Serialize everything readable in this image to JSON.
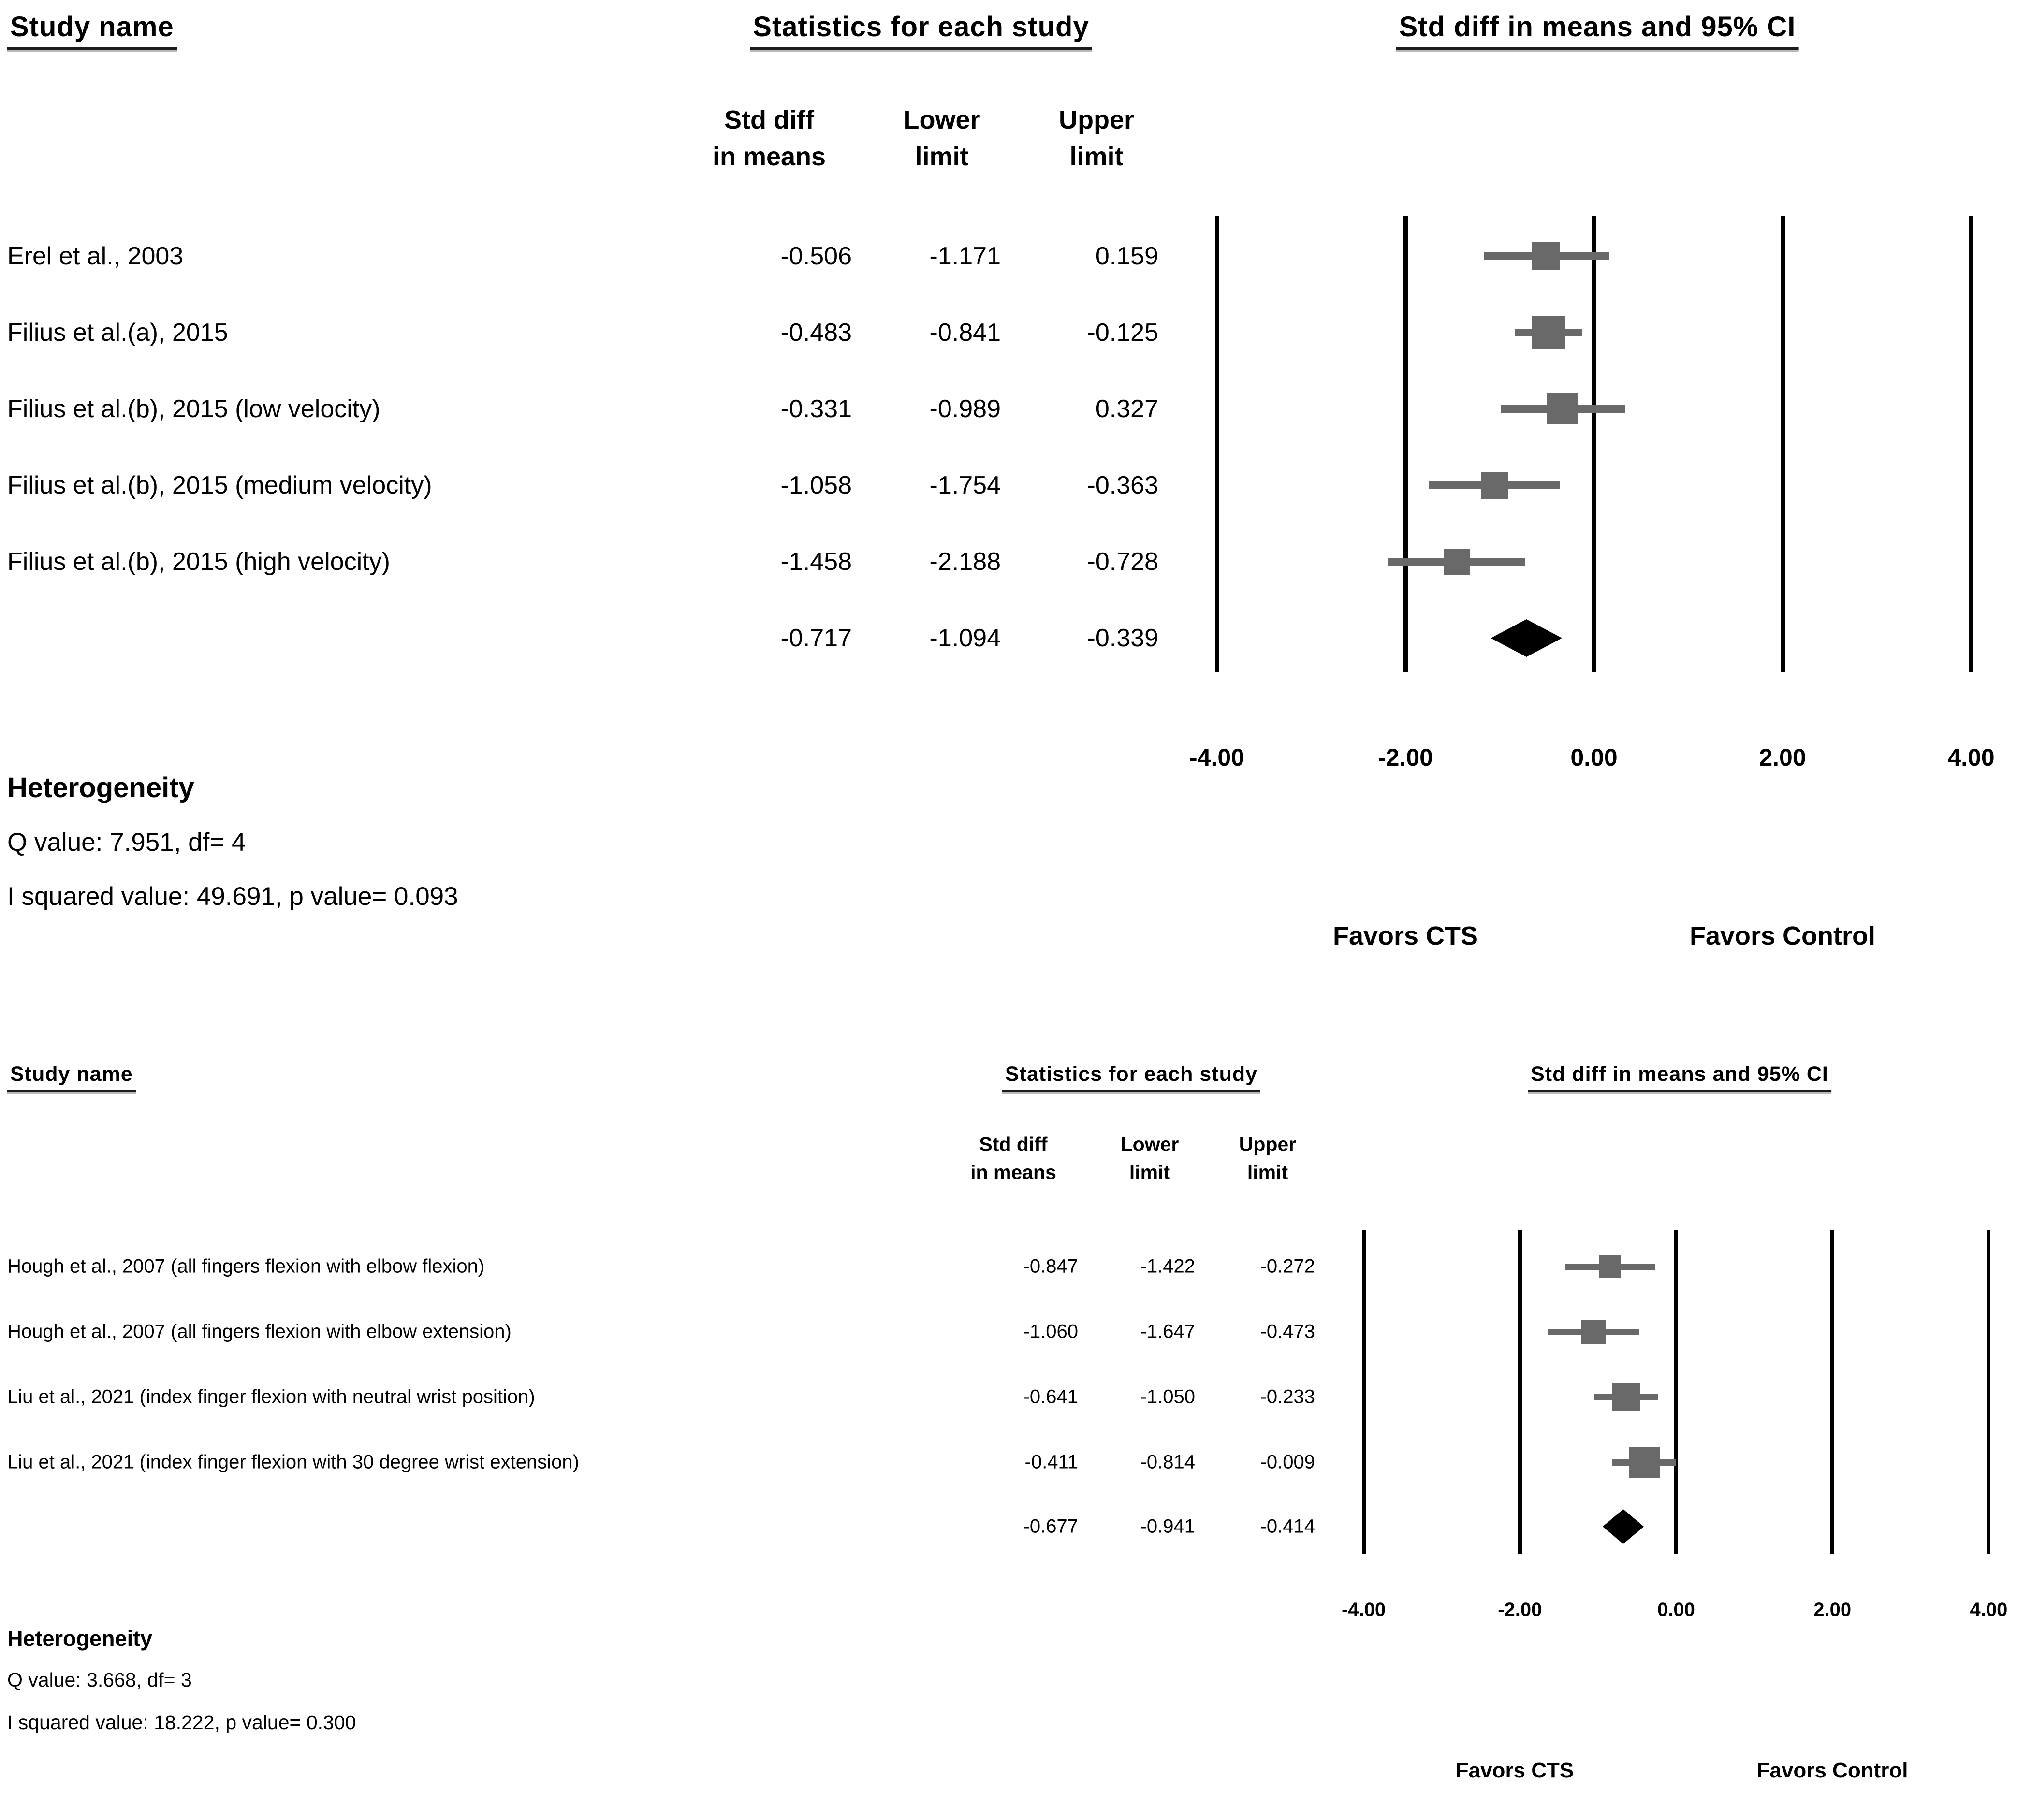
{
  "page": {
    "background": "#ffffff"
  },
  "colors": {
    "text": "#000000",
    "gridline": "#000000",
    "marker": "#696969",
    "ci_line": "#696969",
    "diamond": "#000000"
  },
  "chart_data": [
    {
      "type": "forest",
      "panel": "upper",
      "columns": {
        "study": "Study name",
        "stats": "Statistics for each study",
        "ci": "Std diff in means and 95% CI"
      },
      "stat_headers": {
        "col1_line1": "Std diff",
        "col1_line2": "in means",
        "col2_line1": "Lower",
        "col2_line2": "limit",
        "col3_line1": "Upper",
        "col3_line2": "limit"
      },
      "xlim": [
        -4,
        4
      ],
      "x_ticks": [
        "-4.00",
        "-2.00",
        "0.00",
        "2.00",
        "4.00"
      ],
      "x_tick_values": [
        -4,
        -2,
        0,
        2,
        4
      ],
      "grid": true,
      "legend_position": "none",
      "studies": [
        {
          "name": "Erel et al., 2003",
          "mean": -0.506,
          "lower": -1.171,
          "upper": 0.159,
          "marker_size": 58
        },
        {
          "name": "Filius et al.(a), 2015",
          "mean": -0.483,
          "lower": -0.841,
          "upper": -0.125,
          "marker_size": 68
        },
        {
          "name": "Filius et al.(b), 2015 (low velocity)",
          "mean": -0.331,
          "lower": -0.989,
          "upper": 0.327,
          "marker_size": 64
        },
        {
          "name": "Filius et al.(b), 2015 (medium velocity)",
          "mean": -1.058,
          "lower": -1.754,
          "upper": -0.363,
          "marker_size": 56
        },
        {
          "name": "Filius et al.(b), 2015 (high velocity)",
          "mean": -1.458,
          "lower": -2.188,
          "upper": -0.728,
          "marker_size": 54
        }
      ],
      "summary": {
        "mean": -0.717,
        "lower": -1.094,
        "upper": -0.339
      },
      "favors": {
        "left": "Favors CTS",
        "right": "Favors Control"
      },
      "heterogeneity": {
        "title": "Heterogeneity",
        "q_line": "Q value: 7.951, df= 4",
        "i2_line": "I squared value: 49.691, p value= 0.093"
      }
    },
    {
      "type": "forest",
      "panel": "lower",
      "columns": {
        "study": "Study name",
        "stats": "Statistics for each study",
        "ci": "Std diff in means and 95% CI"
      },
      "stat_headers": {
        "col1_line1": "Std diff",
        "col1_line2": "in means",
        "col2_line1": "Lower",
        "col2_line2": "limit",
        "col3_line1": "Upper",
        "col3_line2": "limit"
      },
      "xlim": [
        -4,
        4
      ],
      "x_ticks": [
        "-4.00",
        "-2.00",
        "0.00",
        "2.00",
        "4.00"
      ],
      "x_tick_values": [
        -4,
        -2,
        0,
        2,
        4
      ],
      "grid": true,
      "legend_position": "none",
      "studies": [
        {
          "name": "Hough et al., 2007 (all fingers flexion with elbow flexion)",
          "mean": -0.847,
          "lower": -1.422,
          "upper": -0.272,
          "marker_size": 46
        },
        {
          "name": "Hough et al., 2007 (all fingers flexion with elbow extension)",
          "mean": -1.06,
          "lower": -1.647,
          "upper": -0.473,
          "marker_size": 50
        },
        {
          "name": "Liu et al., 2021 (index finger flexion with neutral wrist position)",
          "mean": -0.641,
          "lower": -1.05,
          "upper": -0.233,
          "marker_size": 58
        },
        {
          "name": "Liu et al., 2021 (index finger flexion with 30 degree wrist extension)",
          "mean": -0.411,
          "lower": -0.814,
          "upper": -0.009,
          "marker_size": 64
        }
      ],
      "summary": {
        "mean": -0.677,
        "lower": -0.941,
        "upper": -0.414
      },
      "favors": {
        "left": "Favors CTS",
        "right": "Favors Control"
      },
      "heterogeneity": {
        "title": "Heterogeneity",
        "q_line": "Q value: 3.668, df= 3",
        "i2_line": "I squared value: 18.222, p value= 0.300"
      }
    }
  ]
}
